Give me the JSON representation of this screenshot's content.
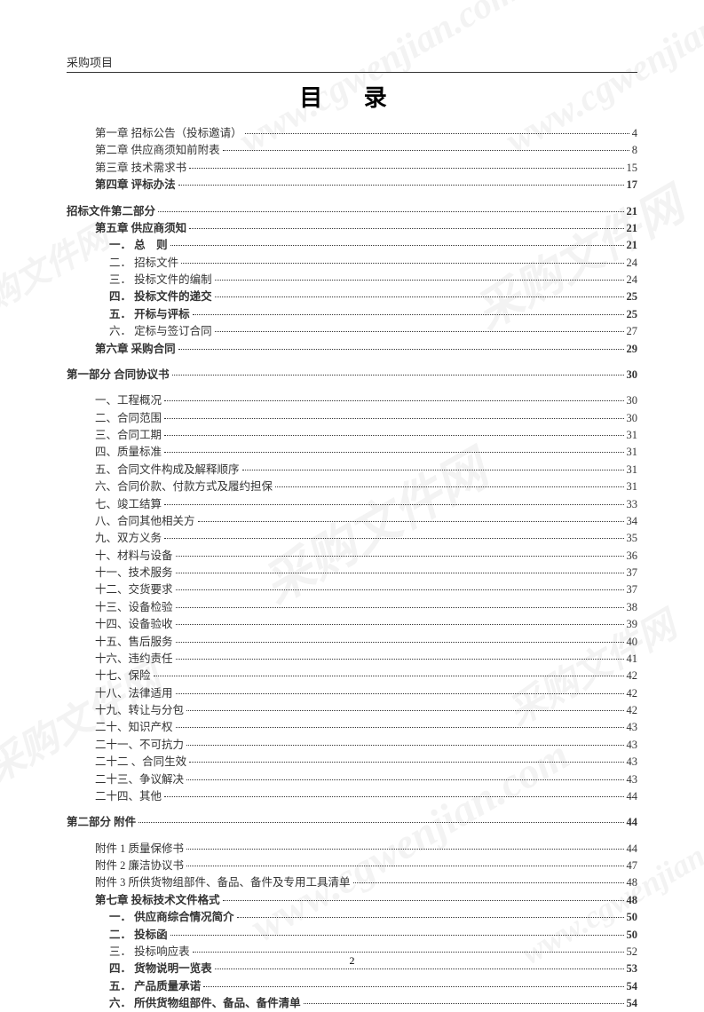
{
  "header": "采购项目",
  "title": "目 录",
  "pageNumber": "2",
  "watermarks": {
    "text1": "www.cgwenjian.com",
    "text2": "采购文件网"
  },
  "entries": [
    {
      "label": "第一章 招标公告（投标邀请）",
      "page": "4",
      "indent": 1,
      "bold": false
    },
    {
      "label": "第二章 供应商须知前附表",
      "page": "8",
      "indent": 1,
      "bold": false
    },
    {
      "label": "第三章 技术需求书",
      "page": "15",
      "indent": 1,
      "bold": false
    },
    {
      "label": "第四章 评标办法",
      "page": "17",
      "indent": 1,
      "bold": true
    },
    {
      "label": "招标文件第二部分",
      "page": "21",
      "indent": 0,
      "bold": true,
      "gap": true
    },
    {
      "label": "第五章 供应商须知",
      "page": "21",
      "indent": 1,
      "bold": true
    },
    {
      "label": "一． 总　则",
      "page": "21",
      "indent": 2,
      "bold": true
    },
    {
      "label": "二． 招标文件",
      "page": "24",
      "indent": 2,
      "bold": false
    },
    {
      "label": "三． 投标文件的编制",
      "page": "24",
      "indent": 2,
      "bold": false
    },
    {
      "label": "四． 投标文件的递交",
      "page": "25",
      "indent": 2,
      "bold": true
    },
    {
      "label": "五． 开标与评标",
      "page": "25",
      "indent": 2,
      "bold": true
    },
    {
      "label": "六． 定标与签订合同",
      "page": "27",
      "indent": 2,
      "bold": false
    },
    {
      "label": "第六章 采购合同",
      "page": "29",
      "indent": 1,
      "bold": true
    },
    {
      "label": "第一部分 合同协议书",
      "page": "30",
      "indent": 0,
      "bold": true,
      "gap": true
    },
    {
      "label": "一、工程概况",
      "page": "30",
      "indent": 1,
      "bold": false,
      "gap": true
    },
    {
      "label": "二、合同范围",
      "page": "30",
      "indent": 1,
      "bold": false
    },
    {
      "label": "三、合同工期",
      "page": "31",
      "indent": 1,
      "bold": false
    },
    {
      "label": "四、质量标准",
      "page": "31",
      "indent": 1,
      "bold": false
    },
    {
      "label": "五、合同文件构成及解释顺序",
      "page": "31",
      "indent": 1,
      "bold": false
    },
    {
      "label": "六、合同价款、付款方式及履约担保",
      "page": "31",
      "indent": 1,
      "bold": false
    },
    {
      "label": "七、竣工结算",
      "page": "33",
      "indent": 1,
      "bold": false
    },
    {
      "label": "八、合同其他相关方",
      "page": "34",
      "indent": 1,
      "bold": false
    },
    {
      "label": "九、双方义务",
      "page": "35",
      "indent": 1,
      "bold": false
    },
    {
      "label": "十、材料与设备",
      "page": "36",
      "indent": 1,
      "bold": false
    },
    {
      "label": "十一、技术服务",
      "page": "37",
      "indent": 1,
      "bold": false
    },
    {
      "label": "十二、交货要求",
      "page": "37",
      "indent": 1,
      "bold": false
    },
    {
      "label": "十三、设备检验",
      "page": "38",
      "indent": 1,
      "bold": false
    },
    {
      "label": "十四、设备验收",
      "page": "39",
      "indent": 1,
      "bold": false
    },
    {
      "label": "十五、售后服务",
      "page": "40",
      "indent": 1,
      "bold": false
    },
    {
      "label": "十六、违约责任",
      "page": "41",
      "indent": 1,
      "bold": false
    },
    {
      "label": "十七、保险",
      "page": "42",
      "indent": 1,
      "bold": false
    },
    {
      "label": "十八、法律适用",
      "page": "42",
      "indent": 1,
      "bold": false
    },
    {
      "label": "十九、转让与分包",
      "page": "42",
      "indent": 1,
      "bold": false
    },
    {
      "label": "二十、知识产权",
      "page": "43",
      "indent": 1,
      "bold": false
    },
    {
      "label": "二十一、不可抗力",
      "page": "43",
      "indent": 1,
      "bold": false
    },
    {
      "label": "二十二 、合同生效",
      "page": "43",
      "indent": 1,
      "bold": false
    },
    {
      "label": "二十三、争议解决",
      "page": "43",
      "indent": 1,
      "bold": false
    },
    {
      "label": "二十四、其他",
      "page": "44",
      "indent": 1,
      "bold": false
    },
    {
      "label": "第二部分 附件",
      "page": "44",
      "indent": 0,
      "bold": true,
      "gap": true
    },
    {
      "label": "附件 1 质量保修书",
      "page": "44",
      "indent": 1,
      "bold": false,
      "gap": true
    },
    {
      "label": "附件 2 廉洁协议书",
      "page": "47",
      "indent": 1,
      "bold": false
    },
    {
      "label": "附件 3 所供货物组部件、备品、备件及专用工具清单",
      "page": "48",
      "indent": 1,
      "bold": false
    },
    {
      "label": "第七章 投标技术文件格式",
      "page": "48",
      "indent": 1,
      "bold": true
    },
    {
      "label": "一． 供应商综合情况简介",
      "page": "50",
      "indent": 2,
      "bold": true
    },
    {
      "label": "二． 投标函",
      "page": "50",
      "indent": 2,
      "bold": true
    },
    {
      "label": "三． 投标响应表",
      "page": "52",
      "indent": 2,
      "bold": false
    },
    {
      "label": "四． 货物说明一览表",
      "page": "53",
      "indent": 2,
      "bold": true
    },
    {
      "label": "五． 产品质量承诺",
      "page": "54",
      "indent": 2,
      "bold": true
    },
    {
      "label": "六． 所供货物组部件、备品、备件清单",
      "page": "54",
      "indent": 2,
      "bold": true
    }
  ]
}
